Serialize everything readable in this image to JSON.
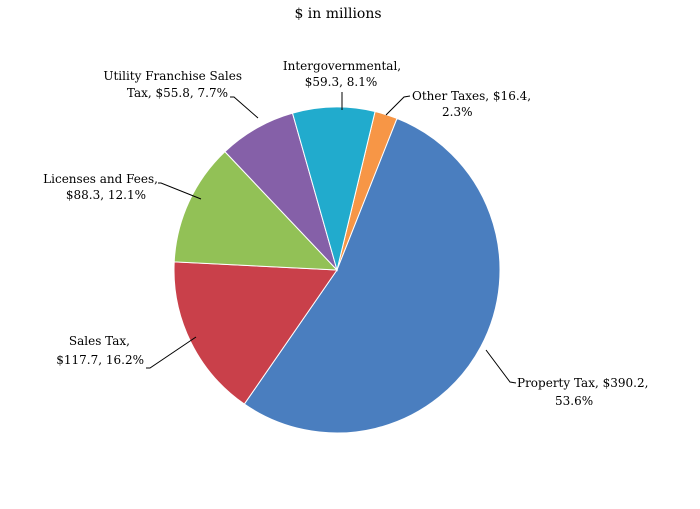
{
  "chart_data": {
    "type": "pie",
    "title": "$ in millions",
    "start_slice": "Other Taxes",
    "direction": "clockwise",
    "slices": [
      {
        "name": "Other Taxes",
        "value": 16.4,
        "percent": 2.3,
        "color": "#f79646",
        "label_lines": [
          "Other Taxes, $16.4,",
          "2.3%"
        ]
      },
      {
        "name": "Property Tax",
        "value": 390.2,
        "percent": 53.6,
        "color": "#4a7ebf",
        "label_lines": [
          "Property Tax, $390.2,",
          "53.6%"
        ]
      },
      {
        "name": "Sales Tax",
        "value": 117.7,
        "percent": 16.2,
        "color": "#c9404a",
        "label_lines": [
          "Sales Tax,",
          "$117.7, 16.2%"
        ]
      },
      {
        "name": "Licenses and Fees",
        "value": 88.3,
        "percent": 12.1,
        "color": "#92c156",
        "label_lines": [
          "Licenses and Fees,",
          "$88.3, 12.1%"
        ]
      },
      {
        "name": "Utility Franchise Sales Tax",
        "value": 55.8,
        "percent": 7.7,
        "color": "#8560a8",
        "label_lines": [
          "Utility Franchise Sales",
          "Tax, $55.8, 7.7%"
        ]
      },
      {
        "name": "Intergovernmental",
        "value": 59.3,
        "percent": 8.1,
        "color": "#21abcd",
        "label_lines": [
          "Intergovernmental,",
          "$59.3, 8.1%"
        ]
      }
    ]
  }
}
